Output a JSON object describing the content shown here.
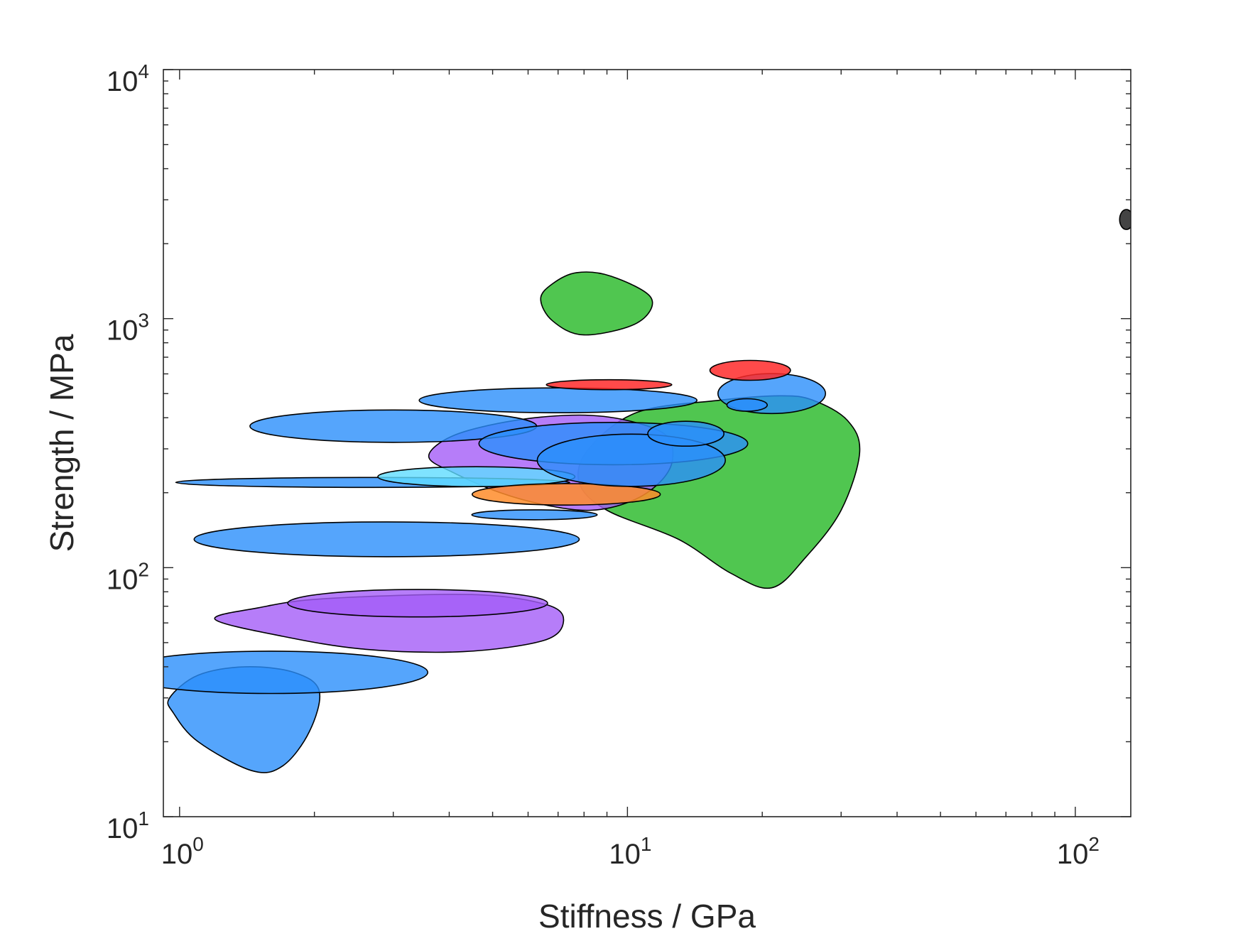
{
  "chart_data": {
    "type": "scatter",
    "subtype": "bubble-ellipses",
    "title": "",
    "xlabel": "Stiffness / GPa",
    "ylabel": "Strength / MPa",
    "xscale": "log",
    "yscale": "log",
    "xlim": [
      0.92,
      133
    ],
    "ylim": [
      10,
      10000
    ],
    "grid": false,
    "legend": "none",
    "x_ticks": [
      {
        "base": "10",
        "exp": "0",
        "value": 1
      },
      {
        "base": "10",
        "exp": "1",
        "value": 10
      },
      {
        "base": "10",
        "exp": "2",
        "value": 100
      }
    ],
    "y_ticks": [
      {
        "base": "10",
        "exp": "1",
        "value": 10
      },
      {
        "base": "10",
        "exp": "2",
        "value": 100
      },
      {
        "base": "10",
        "exp": "3",
        "value": 1000
      },
      {
        "base": "10",
        "exp": "4",
        "value": 10000
      }
    ],
    "colors": {
      "green": "#3dc03d",
      "purple": "#a45cf8",
      "blue": "#2b8ffb",
      "red": "#ff2a2a",
      "orange": "#ff8c2a",
      "cyan": "#5fdcff",
      "dark": "#3a3a3a"
    },
    "regions": [
      {
        "shape": "blob",
        "color": "green",
        "opacity": 0.9,
        "points": [
          [
            6.4,
            1200
          ],
          [
            6.8,
            1380
          ],
          [
            7.7,
            1530
          ],
          [
            9.2,
            1480
          ],
          [
            11.3,
            1210
          ],
          [
            10.5,
            960
          ],
          [
            8.0,
            860
          ],
          [
            6.8,
            980
          ]
        ]
      },
      {
        "shape": "blob",
        "color": "green",
        "opacity": 0.9,
        "points": [
          [
            8.2,
            300
          ],
          [
            10.5,
            420
          ],
          [
            16,
            470
          ],
          [
            22,
            490
          ],
          [
            26,
            470
          ],
          [
            31,
            390
          ],
          [
            33,
            290
          ],
          [
            30,
            170
          ],
          [
            25,
            110
          ],
          [
            21,
            83
          ],
          [
            17,
            95
          ],
          [
            13,
            130
          ],
          [
            9,
            170
          ],
          [
            7.8,
            220
          ]
        ]
      },
      {
        "shape": "blob",
        "color": "purple",
        "opacity": 0.8,
        "points": [
          [
            1.2,
            62
          ],
          [
            1.5,
            69
          ],
          [
            2.1,
            75
          ],
          [
            4.5,
            78
          ],
          [
            6.6,
            71
          ],
          [
            7.2,
            61
          ],
          [
            6.5,
            51
          ],
          [
            4.3,
            46
          ],
          [
            2.6,
            47
          ],
          [
            1.7,
            53
          ]
        ]
      },
      {
        "shape": "blob",
        "color": "purple",
        "opacity": 0.8,
        "points": [
          [
            3.6,
            280
          ],
          [
            4.1,
            340
          ],
          [
            5.6,
            390
          ],
          [
            7.8,
            410
          ],
          [
            10,
            390
          ],
          [
            12.2,
            340
          ],
          [
            12.6,
            270
          ],
          [
            11.8,
            220
          ],
          [
            10.2,
            185
          ],
          [
            8.3,
            170
          ],
          [
            6.6,
            178
          ],
          [
            5.2,
            200
          ],
          [
            4.1,
            240
          ]
        ]
      },
      {
        "shape": "blob",
        "color": "blue",
        "opacity": 0.8,
        "points": [
          [
            0.95,
            30
          ],
          [
            1.1,
            37
          ],
          [
            1.4,
            40
          ],
          [
            1.8,
            38
          ],
          [
            2.05,
            32
          ],
          [
            1.95,
            22
          ],
          [
            1.7,
            16
          ],
          [
            1.45,
            15.3
          ],
          [
            1.1,
            20
          ],
          [
            0.97,
            26
          ]
        ]
      },
      {
        "shape": "ellipse",
        "color": "blue",
        "opacity": 0.8,
        "cx": 1.6,
        "cy": 38,
        "rx": 0.35,
        "ry": 0.085
      },
      {
        "shape": "ellipse",
        "color": "purple",
        "opacity": 0.8,
        "cx": 3.4,
        "cy": 72,
        "rx": 0.29,
        "ry": 0.055
      },
      {
        "shape": "ellipse",
        "color": "blue",
        "opacity": 0.8,
        "cx": 2.9,
        "cy": 130,
        "rx": 0.43,
        "ry": 0.07
      },
      {
        "shape": "ellipse",
        "color": "blue",
        "opacity": 0.8,
        "cx": 2.7,
        "cy": 220,
        "rx": 0.44,
        "ry": 0.02
      },
      {
        "shape": "ellipse",
        "color": "blue",
        "opacity": 0.8,
        "cx": 3.0,
        "cy": 370,
        "rx": 0.32,
        "ry": 0.065
      },
      {
        "shape": "ellipse",
        "color": "blue",
        "opacity": 0.8,
        "cx": 7.0,
        "cy": 470,
        "rx": 0.31,
        "ry": 0.05
      },
      {
        "shape": "ellipse",
        "color": "cyan",
        "opacity": 0.8,
        "cx": 4.6,
        "cy": 232,
        "rx": 0.22,
        "ry": 0.04
      },
      {
        "shape": "ellipse",
        "color": "orange",
        "opacity": 0.85,
        "cx": 7.3,
        "cy": 197,
        "rx": 0.21,
        "ry": 0.043
      },
      {
        "shape": "ellipse",
        "color": "blue",
        "opacity": 0.8,
        "cx": 6.2,
        "cy": 163,
        "rx": 0.14,
        "ry": 0.02
      },
      {
        "shape": "ellipse",
        "color": "red",
        "opacity": 0.85,
        "cx": 9.1,
        "cy": 543,
        "rx": 0.14,
        "ry": 0.02
      },
      {
        "shape": "ellipse",
        "color": "blue",
        "opacity": 0.8,
        "cx": 9.3,
        "cy": 315,
        "rx": 0.3,
        "ry": 0.085
      },
      {
        "shape": "ellipse",
        "color": "blue",
        "opacity": 0.8,
        "cx": 10.2,
        "cy": 270,
        "rx": 0.21,
        "ry": 0.105
      },
      {
        "shape": "ellipse",
        "color": "blue",
        "opacity": 0.8,
        "cx": 13.5,
        "cy": 345,
        "rx": 0.085,
        "ry": 0.05
      },
      {
        "shape": "ellipse",
        "color": "blue",
        "opacity": 0.8,
        "cx": 21,
        "cy": 500,
        "rx": 0.12,
        "ry": 0.08
      },
      {
        "shape": "ellipse",
        "color": "red",
        "opacity": 0.85,
        "cx": 18.8,
        "cy": 620,
        "rx": 0.09,
        "ry": 0.04
      },
      {
        "shape": "ellipse",
        "color": "blue",
        "opacity": 0.9,
        "cx": 18.5,
        "cy": 450,
        "rx": 0.045,
        "ry": 0.025
      },
      {
        "shape": "ellipse",
        "color": "dark",
        "opacity": 0.95,
        "cx": 130,
        "cy": 2500,
        "rx": 0.015,
        "ry": 0.04
      }
    ]
  }
}
